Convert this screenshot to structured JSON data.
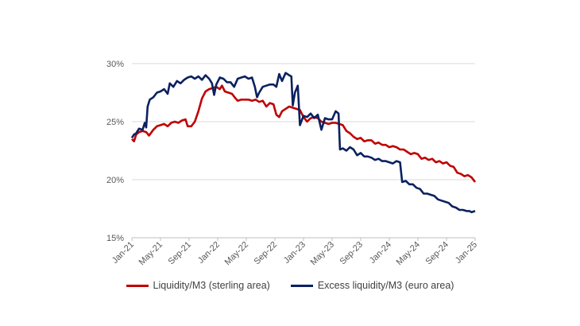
{
  "chart_data": {
    "type": "line",
    "title": "",
    "xlabel": "",
    "ylabel": "",
    "ylim": [
      15,
      30
    ],
    "y_unit": "%",
    "y_ticks": [
      {
        "value": 15,
        "label": "15%"
      },
      {
        "value": 20,
        "label": "20%"
      },
      {
        "value": 25,
        "label": "25%"
      },
      {
        "value": 30,
        "label": "30%"
      }
    ],
    "x_ticks": [
      {
        "t": 0,
        "label": "Jan-21"
      },
      {
        "t": 4,
        "label": "May-21"
      },
      {
        "t": 8,
        "label": "Sep-21"
      },
      {
        "t": 12,
        "label": "Jan-22"
      },
      {
        "t": 16,
        "label": "May-22"
      },
      {
        "t": 20,
        "label": "Sep-22"
      },
      {
        "t": 24,
        "label": "Jan-23"
      },
      {
        "t": 28,
        "label": "May-23"
      },
      {
        "t": 32,
        "label": "Sep-23"
      },
      {
        "t": 36,
        "label": "Jan-24"
      },
      {
        "t": 40,
        "label": "May-24"
      },
      {
        "t": 44,
        "label": "Sep-24"
      },
      {
        "t": 48,
        "label": "Jan-25"
      }
    ],
    "x_range": [
      0,
      48
    ],
    "x_unit": "months since Jan-21",
    "grid": "horizontal",
    "legend_position": "bottom",
    "series": [
      {
        "name": "Liquidity/M3 (sterling area)",
        "color": "#c00000",
        "points": [
          [
            0,
            23.5
          ],
          [
            0.3,
            23.3
          ],
          [
            0.6,
            23.9
          ],
          [
            1.0,
            24.1
          ],
          [
            1.5,
            24.2
          ],
          [
            2.0,
            24.1
          ],
          [
            2.4,
            23.8
          ],
          [
            3.0,
            24.3
          ],
          [
            3.5,
            24.6
          ],
          [
            4.0,
            24.7
          ],
          [
            4.5,
            24.8
          ],
          [
            5.0,
            24.6
          ],
          [
            5.5,
            24.9
          ],
          [
            6.0,
            25.0
          ],
          [
            6.5,
            24.9
          ],
          [
            7.0,
            25.1
          ],
          [
            7.5,
            25.2
          ],
          [
            7.8,
            24.6
          ],
          [
            8.3,
            24.6
          ],
          [
            8.8,
            25.0
          ],
          [
            9.3,
            25.9
          ],
          [
            9.8,
            27.0
          ],
          [
            10.3,
            27.6
          ],
          [
            10.8,
            27.8
          ],
          [
            11.3,
            27.9
          ],
          [
            11.8,
            28.0
          ],
          [
            12.3,
            27.8
          ],
          [
            12.6,
            28.1
          ],
          [
            13.0,
            27.6
          ],
          [
            13.5,
            27.5
          ],
          [
            14.0,
            27.4
          ],
          [
            14.5,
            27.0
          ],
          [
            14.8,
            26.8
          ],
          [
            15.3,
            26.9
          ],
          [
            15.8,
            26.9
          ],
          [
            16.3,
            26.9
          ],
          [
            16.8,
            26.8
          ],
          [
            17.3,
            26.9
          ],
          [
            17.8,
            26.7
          ],
          [
            18.3,
            26.8
          ],
          [
            18.8,
            26.3
          ],
          [
            19.3,
            26.6
          ],
          [
            19.8,
            26.5
          ],
          [
            20.2,
            25.6
          ],
          [
            20.6,
            25.4
          ],
          [
            21.0,
            25.9
          ],
          [
            21.5,
            26.1
          ],
          [
            22.0,
            26.3
          ],
          [
            22.5,
            26.2
          ],
          [
            23.0,
            26.1
          ],
          [
            23.5,
            26.0
          ],
          [
            24.0,
            25.4
          ],
          [
            24.5,
            25.0
          ],
          [
            25.0,
            25.3
          ],
          [
            25.5,
            25.4
          ],
          [
            26.0,
            25.3
          ],
          [
            26.5,
            25.0
          ],
          [
            27.0,
            24.9
          ],
          [
            27.5,
            24.8
          ],
          [
            28.0,
            24.9
          ],
          [
            28.5,
            24.9
          ],
          [
            29.0,
            24.8
          ],
          [
            29.5,
            24.7
          ],
          [
            30.0,
            24.2
          ],
          [
            30.5,
            24.0
          ],
          [
            31.0,
            23.7
          ],
          [
            31.5,
            23.5
          ],
          [
            32.0,
            23.6
          ],
          [
            32.5,
            23.3
          ],
          [
            33.0,
            23.4
          ],
          [
            33.5,
            23.4
          ],
          [
            34.0,
            23.1
          ],
          [
            34.5,
            23.2
          ],
          [
            35.0,
            23.0
          ],
          [
            35.5,
            23.0
          ],
          [
            36.0,
            22.8
          ],
          [
            36.5,
            22.9
          ],
          [
            37.0,
            22.8
          ],
          [
            37.5,
            22.6
          ],
          [
            38.0,
            22.6
          ],
          [
            38.5,
            22.4
          ],
          [
            39.0,
            22.2
          ],
          [
            39.5,
            22.3
          ],
          [
            40.0,
            22.2
          ],
          [
            40.5,
            21.8
          ],
          [
            41.0,
            21.9
          ],
          [
            41.5,
            21.7
          ],
          [
            42.0,
            21.8
          ],
          [
            42.5,
            21.5
          ],
          [
            43.0,
            21.6
          ],
          [
            43.5,
            21.4
          ],
          [
            44.0,
            21.5
          ],
          [
            44.5,
            21.2
          ],
          [
            45.0,
            21.1
          ],
          [
            45.5,
            20.6
          ],
          [
            46.0,
            20.5
          ],
          [
            46.5,
            20.3
          ],
          [
            47.0,
            20.4
          ],
          [
            47.5,
            20.2
          ],
          [
            48.0,
            19.8
          ]
        ]
      },
      {
        "name": "Excess liquidity/M3 (euro area)",
        "color": "#0a2160",
        "points": [
          [
            0,
            23.6
          ],
          [
            0.3,
            23.9
          ],
          [
            0.6,
            24.0
          ],
          [
            1.0,
            24.4
          ],
          [
            1.5,
            24.3
          ],
          [
            1.8,
            24.9
          ],
          [
            2.0,
            24.5
          ],
          [
            2.2,
            26.3
          ],
          [
            2.5,
            26.9
          ],
          [
            3.0,
            27.1
          ],
          [
            3.5,
            27.5
          ],
          [
            4.0,
            27.6
          ],
          [
            4.5,
            27.8
          ],
          [
            5.0,
            27.4
          ],
          [
            5.3,
            28.3
          ],
          [
            5.8,
            28.0
          ],
          [
            6.3,
            28.5
          ],
          [
            6.8,
            28.3
          ],
          [
            7.3,
            28.6
          ],
          [
            7.8,
            28.8
          ],
          [
            8.3,
            28.9
          ],
          [
            8.8,
            28.7
          ],
          [
            9.3,
            28.9
          ],
          [
            9.8,
            28.6
          ],
          [
            10.3,
            29.0
          ],
          [
            10.8,
            28.7
          ],
          [
            11.2,
            28.3
          ],
          [
            11.5,
            27.3
          ],
          [
            11.8,
            28.2
          ],
          [
            12.3,
            28.8
          ],
          [
            12.8,
            28.7
          ],
          [
            13.3,
            28.4
          ],
          [
            13.8,
            28.4
          ],
          [
            14.3,
            28.0
          ],
          [
            14.8,
            28.7
          ],
          [
            15.3,
            28.8
          ],
          [
            15.8,
            28.9
          ],
          [
            16.3,
            28.7
          ],
          [
            16.8,
            28.8
          ],
          [
            17.2,
            28.0
          ],
          [
            17.5,
            27.1
          ],
          [
            17.8,
            27.5
          ],
          [
            18.3,
            28.0
          ],
          [
            18.8,
            28.1
          ],
          [
            19.3,
            28.2
          ],
          [
            19.8,
            28.2
          ],
          [
            20.2,
            28.0
          ],
          [
            20.6,
            29.1
          ],
          [
            21.0,
            28.5
          ],
          [
            21.5,
            29.2
          ],
          [
            22.0,
            29.0
          ],
          [
            22.3,
            28.9
          ],
          [
            22.5,
            26.4
          ],
          [
            22.8,
            27.5
          ],
          [
            23.2,
            28.1
          ],
          [
            23.5,
            24.7
          ],
          [
            24.0,
            25.5
          ],
          [
            24.5,
            25.4
          ],
          [
            25.0,
            25.7
          ],
          [
            25.5,
            25.3
          ],
          [
            26.0,
            25.6
          ],
          [
            26.5,
            24.3
          ],
          [
            27.0,
            25.3
          ],
          [
            27.5,
            25.2
          ],
          [
            28.0,
            25.2
          ],
          [
            28.5,
            25.9
          ],
          [
            28.9,
            25.7
          ],
          [
            29.1,
            22.6
          ],
          [
            29.5,
            22.7
          ],
          [
            30.0,
            22.5
          ],
          [
            30.5,
            22.8
          ],
          [
            31.0,
            22.6
          ],
          [
            31.5,
            22.1
          ],
          [
            32.0,
            22.3
          ],
          [
            32.5,
            22.0
          ],
          [
            33.0,
            22.0
          ],
          [
            33.5,
            21.9
          ],
          [
            34.0,
            21.7
          ],
          [
            34.5,
            21.8
          ],
          [
            35.0,
            21.6
          ],
          [
            35.5,
            21.6
          ],
          [
            36.0,
            21.5
          ],
          [
            36.5,
            21.4
          ],
          [
            37.0,
            21.6
          ],
          [
            37.5,
            21.5
          ],
          [
            37.8,
            19.8
          ],
          [
            38.3,
            19.9
          ],
          [
            38.8,
            19.6
          ],
          [
            39.3,
            19.6
          ],
          [
            39.8,
            19.3
          ],
          [
            40.3,
            19.2
          ],
          [
            40.8,
            18.8
          ],
          [
            41.3,
            18.8
          ],
          [
            41.8,
            18.7
          ],
          [
            42.3,
            18.6
          ],
          [
            42.8,
            18.3
          ],
          [
            43.3,
            18.2
          ],
          [
            43.8,
            18.1
          ],
          [
            44.3,
            18.0
          ],
          [
            44.8,
            17.7
          ],
          [
            45.3,
            17.6
          ],
          [
            45.8,
            17.4
          ],
          [
            46.3,
            17.4
          ],
          [
            46.8,
            17.3
          ],
          [
            47.2,
            17.3
          ],
          [
            47.5,
            17.2
          ],
          [
            48.0,
            17.3
          ]
        ]
      }
    ]
  }
}
